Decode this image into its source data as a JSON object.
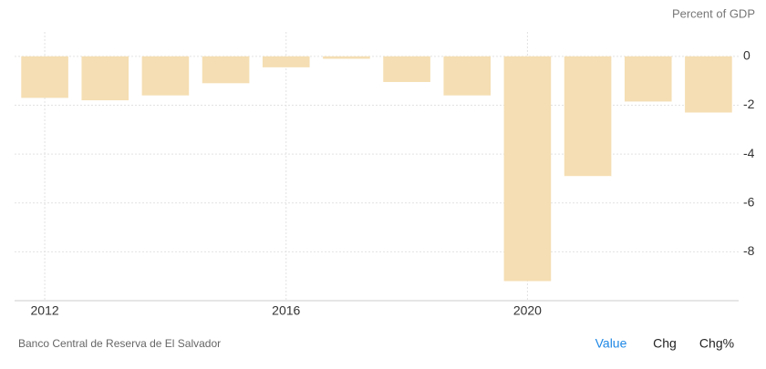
{
  "chart_data": {
    "type": "bar",
    "unit_label": "Percent of GDP",
    "categories": [
      "2012",
      null,
      null,
      null,
      "2016",
      null,
      null,
      null,
      "2020",
      null,
      null,
      null
    ],
    "values": [
      -1.7,
      -1.8,
      -1.6,
      -1.1,
      -0.45,
      -0.1,
      -1.05,
      -1.6,
      -9.2,
      -4.9,
      -1.85,
      -2.3
    ],
    "color": "#f5deb3",
    "ylim": [
      -10,
      1
    ],
    "yticks": [
      0,
      -2,
      -4,
      -6,
      -8
    ],
    "grid": true,
    "source": "Banco Central de Reserva de El Salvador",
    "tabs": [
      "Value",
      "Chg",
      "Chg%"
    ]
  }
}
